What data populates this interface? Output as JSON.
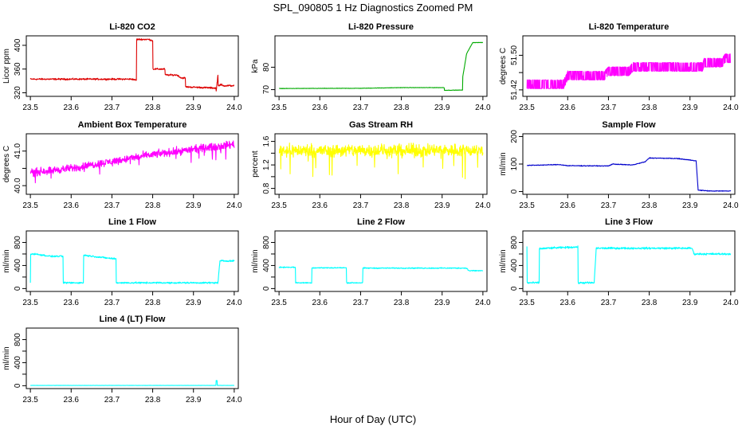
{
  "figure": {
    "title": "SPL_090805  1 Hz Diagnostics Zoomed PM",
    "xlabel": "Hour of Day (UTC)"
  },
  "chart_data": [
    {
      "type": "line",
      "title": "Li-820 CO2",
      "ylabel": "Licor ppm",
      "color": "#dd0000",
      "xlim": [
        23.49,
        24.01
      ],
      "ylim": [
        314,
        416
      ],
      "xticks": [
        23.5,
        23.6,
        23.7,
        23.8,
        23.9,
        24.0
      ],
      "yticks": [
        320,
        360,
        400
      ],
      "ytick_labels": [
        "320",
        "360",
        "400"
      ],
      "noise": 1.5,
      "x": [
        23.5,
        23.75,
        23.76,
        23.76,
        23.79,
        23.8,
        23.8,
        23.83,
        23.83,
        23.86,
        23.87,
        23.88,
        23.88,
        23.955,
        23.955,
        23.96,
        23.96,
        23.96,
        23.97,
        23.97,
        24.0
      ],
      "y": [
        343,
        343,
        341,
        410,
        410,
        408,
        360,
        360,
        350,
        350,
        345,
        345,
        330,
        328,
        318,
        350,
        328,
        332,
        334,
        332,
        332
      ]
    },
    {
      "type": "line",
      "title": "Li-820 Pressure",
      "ylabel": "kPa",
      "color": "#00aa00",
      "xlim": [
        23.49,
        24.01
      ],
      "ylim": [
        67,
        94
      ],
      "xticks": [
        23.5,
        23.6,
        23.7,
        23.8,
        23.9,
        24.0
      ],
      "yticks": [
        70,
        80
      ],
      "ytick_labels": [
        "70",
        "80"
      ],
      "noise": 0.1,
      "x": [
        23.5,
        23.7,
        23.8,
        23.905,
        23.905,
        23.95,
        23.95,
        23.96,
        23.975,
        24.0
      ],
      "y": [
        70.5,
        70.6,
        70.9,
        70.9,
        69.7,
        69.8,
        75,
        86,
        91,
        91
      ]
    },
    {
      "type": "line",
      "title": "Li-820 Temperature",
      "ylabel": "degrees C",
      "color": "#ff00ff",
      "xlim": [
        23.49,
        24.01
      ],
      "ylim": [
        51.405,
        51.545
      ],
      "xticks": [
        23.5,
        23.6,
        23.7,
        23.8,
        23.9,
        24.0
      ],
      "yticks": [
        51.42,
        51.46,
        51.5
      ],
      "ytick_labels": [
        "51.42",
        "",
        "51.50"
      ],
      "band": 0.02,
      "x": [
        23.5,
        23.59,
        23.6,
        23.69,
        23.7,
        23.75,
        23.76,
        23.93,
        23.935,
        23.98,
        23.985,
        24.0
      ],
      "y": [
        51.423,
        51.423,
        51.443,
        51.443,
        51.453,
        51.453,
        51.463,
        51.463,
        51.473,
        51.473,
        51.483,
        51.483
      ]
    },
    {
      "type": "line",
      "title": "Ambient Box Temperature",
      "ylabel": "degrees C",
      "color": "#ff00ff",
      "xlim": [
        23.49,
        24.01
      ],
      "ylim": [
        39.75,
        41.5
      ],
      "xticks": [
        23.5,
        23.6,
        23.7,
        23.8,
        23.9,
        24.0
      ],
      "yticks": [
        40.0,
        40.5,
        41.0
      ],
      "ytick_labels": [
        "40.0",
        "",
        "41.0"
      ],
      "noise": 0.12,
      "x": [
        23.5,
        23.6,
        23.7,
        23.8,
        23.9,
        24.0
      ],
      "y": [
        40.38,
        40.5,
        40.7,
        40.9,
        41.05,
        41.2
      ]
    },
    {
      "type": "line",
      "title": "Gas Stream RH",
      "ylabel": "percent",
      "color": "#ffff00",
      "xlim": [
        23.49,
        24.01
      ],
      "ylim": [
        0.7,
        1.73
      ],
      "xticks": [
        23.5,
        23.6,
        23.7,
        23.8,
        23.9,
        24.0
      ],
      "yticks": [
        0.8,
        1.0,
        1.2,
        1.4,
        1.6
      ],
      "ytick_labels": [
        "0.8",
        "",
        "1.2",
        "",
        "1.6"
      ],
      "noise": 0.12,
      "x": [
        23.5,
        23.6,
        23.7,
        23.8,
        23.9,
        24.0
      ],
      "y": [
        1.45,
        1.44,
        1.45,
        1.44,
        1.45,
        1.45
      ]
    },
    {
      "type": "line",
      "title": "Sample Flow",
      "ylabel": "ml/min",
      "color": "#0000cc",
      "xlim": [
        23.49,
        24.01
      ],
      "ylim": [
        -10,
        210
      ],
      "xticks": [
        23.5,
        23.6,
        23.7,
        23.8,
        23.9,
        24.0
      ],
      "yticks": [
        0,
        100,
        200
      ],
      "ytick_labels": [
        "0",
        "100",
        "200"
      ],
      "noise": 1.5,
      "x": [
        23.5,
        23.58,
        23.6,
        23.7,
        23.71,
        23.75,
        23.76,
        23.79,
        23.8,
        23.87,
        23.88,
        23.915,
        23.92,
        23.95,
        24.0
      ],
      "y": [
        95,
        98,
        94,
        93,
        100,
        97,
        97,
        108,
        122,
        120,
        118,
        112,
        5,
        2,
        2
      ]
    },
    {
      "type": "line",
      "title": "Line 1 Flow",
      "ylabel": "ml/min",
      "color": "#00ffff",
      "xlim": [
        23.49,
        24.01
      ],
      "ylim": [
        -50,
        1000
      ],
      "xticks": [
        23.5,
        23.6,
        23.7,
        23.8,
        23.9,
        24.0
      ],
      "yticks": [
        0,
        200,
        400,
        600,
        800
      ],
      "ytick_labels": [
        "0",
        "",
        "400",
        "",
        "800"
      ],
      "noise": 15,
      "x": [
        23.5,
        23.5,
        23.51,
        23.55,
        23.58,
        23.58,
        23.63,
        23.63,
        23.7,
        23.71,
        23.71,
        23.96,
        23.965,
        24.0
      ],
      "y": [
        100,
        600,
        600,
        560,
        560,
        100,
        100,
        580,
        520,
        520,
        100,
        100,
        480,
        480
      ]
    },
    {
      "type": "line",
      "title": "Line 2 Flow",
      "ylabel": "ml/min",
      "color": "#00ffff",
      "xlim": [
        23.49,
        24.01
      ],
      "ylim": [
        -50,
        1000
      ],
      "xticks": [
        23.5,
        23.6,
        23.7,
        23.8,
        23.9,
        24.0
      ],
      "yticks": [
        0,
        200,
        400,
        600,
        800
      ],
      "ytick_labels": [
        "0",
        "",
        "400",
        "",
        "800"
      ],
      "noise": 10,
      "x": [
        23.5,
        23.54,
        23.54,
        23.58,
        23.58,
        23.665,
        23.665,
        23.705,
        23.705,
        23.96,
        23.965,
        24.0
      ],
      "y": [
        370,
        370,
        100,
        100,
        360,
        360,
        100,
        100,
        355,
        355,
        310,
        310
      ]
    },
    {
      "type": "line",
      "title": "Line 3 Flow",
      "ylabel": "ml/min",
      "color": "#00ffff",
      "xlim": [
        23.49,
        24.01
      ],
      "ylim": [
        -50,
        1000
      ],
      "xticks": [
        23.5,
        23.6,
        23.7,
        23.8,
        23.9,
        24.0
      ],
      "yticks": [
        0,
        200,
        400,
        600,
        800
      ],
      "ytick_labels": [
        "0",
        "",
        "400",
        "",
        "800"
      ],
      "noise": 18,
      "x": [
        23.5,
        23.5,
        23.505,
        23.53,
        23.53,
        23.55,
        23.62,
        23.625,
        23.625,
        23.665,
        23.67,
        23.9,
        23.905,
        23.91,
        24.0
      ],
      "y": [
        720,
        100,
        100,
        100,
        690,
        700,
        720,
        720,
        100,
        100,
        700,
        700,
        700,
        600,
        600
      ]
    },
    {
      "type": "line",
      "title": "Line 4 (LT) Flow",
      "ylabel": "ml/min",
      "color": "#00ffff",
      "xlim": [
        23.49,
        24.01
      ],
      "ylim": [
        -50,
        1000
      ],
      "xticks": [
        23.5,
        23.6,
        23.7,
        23.8,
        23.9,
        24.0
      ],
      "yticks": [
        0,
        200,
        400,
        600,
        800
      ],
      "ytick_labels": [
        "0",
        "",
        "400",
        "",
        "800"
      ],
      "noise": 2,
      "x": [
        23.5,
        23.955,
        23.955,
        23.958,
        23.958,
        24.0
      ],
      "y": [
        5,
        5,
        90,
        90,
        5,
        5
      ]
    }
  ]
}
